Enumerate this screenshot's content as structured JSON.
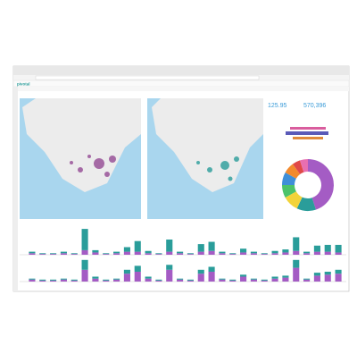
{
  "app": {
    "logo": "pivotal"
  },
  "kpis": [
    {
      "value": "125.95"
    },
    {
      "value": "570,396"
    }
  ],
  "charts": {
    "donut": {
      "type": "pie",
      "values": [
        45,
        12,
        10,
        8,
        8,
        7,
        5,
        5
      ],
      "colors": [
        "#a45cc4",
        "#2a9d9a",
        "#f2d33a",
        "#4cc36a",
        "#3f8fd8",
        "#f28a2e",
        "#e04848",
        "#e86fb0"
      ]
    },
    "bars_top": {
      "type": "bar",
      "stacked": true,
      "series": [
        {
          "color": "#a45cc4",
          "values": [
            2,
            1,
            1,
            2,
            1,
            6,
            3,
            1,
            2,
            4,
            4,
            2,
            1,
            4,
            2,
            1,
            4,
            5,
            2,
            1,
            3,
            2,
            1,
            2,
            3,
            5,
            2,
            4,
            4,
            3
          ]
        },
        {
          "color": "#2a9d9a",
          "values": [
            2,
            1,
            1,
            2,
            1,
            28,
            3,
            1,
            2,
            6,
            14,
            3,
            1,
            16,
            2,
            1,
            10,
            12,
            2,
            1,
            5,
            2,
            1,
            3,
            4,
            18,
            2,
            8,
            9,
            10
          ]
        }
      ]
    },
    "bars_bottom": {
      "type": "bar",
      "stacked": true,
      "series": [
        {
          "color": "#a45cc4",
          "values": [
            2,
            1,
            1,
            2,
            1,
            12,
            3,
            1,
            2,
            8,
            10,
            3,
            1,
            12,
            2,
            1,
            8,
            10,
            2,
            1,
            5,
            2,
            1,
            3,
            4,
            14,
            2,
            6,
            7,
            8
          ]
        },
        {
          "color": "#2a9d9a",
          "values": [
            1,
            1,
            1,
            1,
            1,
            10,
            2,
            1,
            1,
            4,
            6,
            2,
            1,
            5,
            1,
            1,
            4,
            5,
            1,
            1,
            2,
            1,
            1,
            2,
            2,
            8,
            1,
            3,
            3,
            4
          ]
        }
      ]
    }
  }
}
